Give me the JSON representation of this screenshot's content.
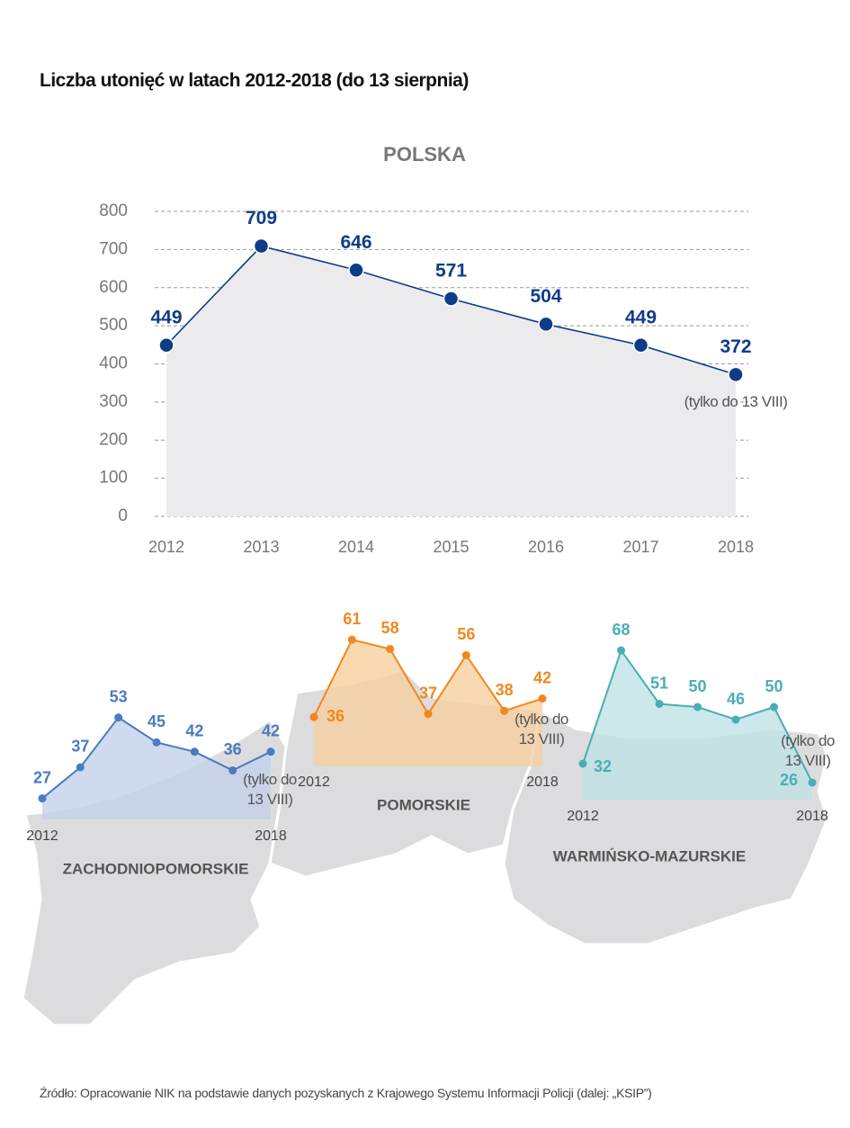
{
  "title": "Liczba utonięć w latach 2012-2018 (do 13 sierpnia)",
  "source": "Źródło: Opracowanie NIK na podstawie danych pozyskanych z Krajowego Systemu Informacji Policji (dalej: „KSIP”)",
  "chart_data": [
    {
      "type": "line",
      "title": "POLSKA",
      "x": [
        2012,
        2013,
        2014,
        2015,
        2016,
        2017,
        2018
      ],
      "values": [
        449,
        709,
        646,
        571,
        504,
        449,
        372
      ],
      "color": "#0e3c88",
      "area_color": "#ebebee",
      "xlim": [
        2012,
        2018
      ],
      "xticks": [
        2012,
        2013,
        2014,
        2015,
        2016,
        2017,
        2018
      ],
      "ylim": [
        0,
        800
      ],
      "yticks": [
        0,
        100,
        200,
        300,
        400,
        500,
        600,
        700,
        800
      ],
      "grid": true,
      "annotation": "(tylko do 13 VIII)"
    },
    {
      "type": "line",
      "title": "ZACHODNIOPOMORSKIE",
      "x": [
        2012,
        2013,
        2014,
        2015,
        2016,
        2017,
        2018
      ],
      "values": [
        27,
        37,
        53,
        45,
        42,
        36,
        42
      ],
      "color": "#4a7bc0",
      "area_color": "#c3d1ea",
      "xlim": [
        2012,
        2018
      ],
      "xticks": [
        2012,
        2018
      ],
      "annotation": "(tylko do 13 VIII)"
    },
    {
      "type": "line",
      "title": "POMORSKIE",
      "x": [
        2012,
        2013,
        2014,
        2015,
        2016,
        2017,
        2018
      ],
      "values": [
        36,
        61,
        58,
        37,
        56,
        38,
        42
      ],
      "color": "#f0881c",
      "area_color": "#f7cf9f",
      "xlim": [
        2012,
        2018
      ],
      "xticks": [
        2012,
        2018
      ],
      "annotation": "(tylko do 13 VIII)"
    },
    {
      "type": "line",
      "title": "WARMIŃSKO-MAZURSKIE",
      "x": [
        2012,
        2013,
        2014,
        2015,
        2016,
        2017,
        2018
      ],
      "values": [
        32,
        68,
        51,
        50,
        46,
        50,
        26
      ],
      "color": "#4aadb5",
      "area_color": "#c0e2e5",
      "xlim": [
        2012,
        2018
      ],
      "xticks": [
        2012,
        2018
      ],
      "annotation": "(tylko do 13 VIII)"
    }
  ]
}
